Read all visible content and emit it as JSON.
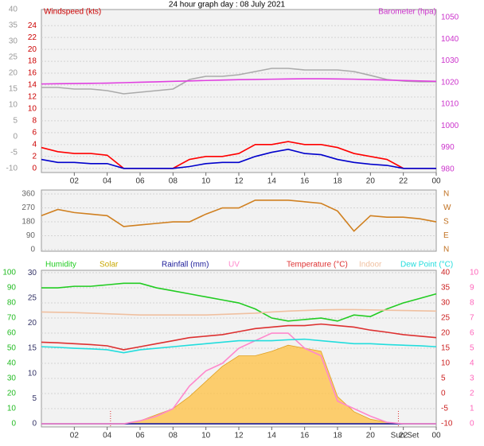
{
  "chart_data": [
    {
      "type": "line",
      "title": "24 hour graph day : 08 July 2021",
      "y_label": "Windspeed (kts)",
      "y2_label": "Barometer (hpa)",
      "grid": true,
      "x": [
        0,
        1,
        2,
        3,
        4,
        5,
        6,
        7,
        8,
        9,
        10,
        11,
        12,
        13,
        14,
        15,
        16,
        17,
        18,
        19,
        20,
        21,
        22,
        23,
        24
      ],
      "xlim": [
        0,
        24
      ],
      "xticks": [
        {
          "value": 2,
          "label": "02"
        },
        {
          "value": 4,
          "label": "04"
        },
        {
          "value": 6,
          "label": "06"
        },
        {
          "value": 8,
          "label": "08"
        },
        10,
        12,
        14,
        16,
        18,
        20,
        22,
        {
          "value": 24,
          "label": "00"
        }
      ],
      "ylim": [
        -0.7,
        26.7
      ],
      "yticks": [
        0,
        2,
        4,
        6,
        8,
        10,
        12,
        14,
        16,
        18,
        20,
        22,
        24
      ],
      "y2lim": [
        978.5,
        1053.6
      ],
      "y2ticks": [
        980,
        990,
        1000,
        1010,
        1020,
        1030,
        1040,
        1050
      ],
      "y3lim": [
        -11.25,
        40
      ],
      "y3ticks": [
        -10,
        -5,
        0,
        5,
        10,
        15,
        20,
        25,
        30,
        35,
        40
      ],
      "axis_colors": {
        "y": "#cc0000",
        "y2": "#cc33cc",
        "y3": "#999999"
      },
      "series": [
        {
          "color": "#aaaaaa",
          "axis": "y3",
          "values": [
            15.5,
            15.5,
            15,
            15,
            14.5,
            13.5,
            14,
            14.5,
            15,
            18,
            19,
            19,
            19.5,
            20.5,
            21.5,
            21.5,
            21,
            21,
            21,
            20.5,
            19.3,
            18,
            17.5,
            17.3,
            17.3
          ]
        },
        {
          "color": "#e040e0",
          "axis": "y2",
          "values": [
            1019.3,
            1019.4,
            1019.5,
            1019.6,
            1019.7,
            1019.9,
            1020.1,
            1020.3,
            1020.5,
            1020.7,
            1020.9,
            1021.1,
            1021.3,
            1021.4,
            1021.5,
            1021.6,
            1021.7,
            1021.7,
            1021.6,
            1021.5,
            1021.3,
            1021.1,
            1020.9,
            1020.7,
            1020.5
          ]
        },
        {
          "color": "#ff0000",
          "axis": "y",
          "values": [
            3.5,
            2.8,
            2.5,
            2.5,
            2.2,
            0,
            0,
            0,
            0,
            1.5,
            2,
            2,
            2.5,
            4,
            4,
            4.5,
            4,
            4,
            3.5,
            2.5,
            2,
            1.5,
            0,
            0,
            0
          ]
        },
        {
          "color": "#0000cc",
          "axis": "y",
          "values": [
            1.5,
            1,
            1,
            0.8,
            0.8,
            0,
            0,
            0,
            0,
            0.3,
            0.8,
            1,
            1,
            2,
            2.7,
            3.2,
            2.5,
            2.3,
            1.5,
            1,
            0.7,
            0.5,
            0,
            0,
            0
          ]
        }
      ]
    },
    {
      "type": "line",
      "grid": true,
      "x": [
        0,
        1,
        2,
        3,
        4,
        5,
        6,
        7,
        8,
        9,
        10,
        11,
        12,
        13,
        14,
        15,
        16,
        17,
        18,
        19,
        20,
        21,
        22,
        23,
        24
      ],
      "xlim": [
        0,
        24
      ],
      "ylim": [
        -10,
        386
      ],
      "yticks": [
        0,
        90,
        180,
        270,
        360
      ],
      "y2lim": [
        -10,
        386
      ],
      "y2ticks": [
        {
          "value": 0,
          "label": "N"
        },
        {
          "value": 90,
          "label": "E"
        },
        {
          "value": 180,
          "label": "S"
        },
        {
          "value": 270,
          "label": "W"
        },
        {
          "value": 360,
          "label": "N"
        }
      ],
      "axis_colors": {
        "y": "#666666",
        "y2": "#c07020"
      },
      "series": [
        {
          "color": "#d08020",
          "axis": "y",
          "values": [
            220,
            260,
            240,
            230,
            220,
            150,
            160,
            170,
            180,
            180,
            230,
            270,
            270,
            320,
            320,
            320,
            310,
            300,
            250,
            120,
            220,
            210,
            210,
            200,
            180
          ]
        }
      ]
    },
    {
      "type": "line",
      "grid": true,
      "x": [
        0,
        1,
        2,
        3,
        4,
        5,
        6,
        7,
        8,
        9,
        10,
        11,
        12,
        13,
        14,
        15,
        16,
        17,
        18,
        19,
        20,
        21,
        22,
        23,
        24
      ],
      "xlim": [
        0,
        24
      ],
      "xticks": [
        {
          "value": 2,
          "label": "02"
        },
        {
          "value": 4,
          "label": "04"
        },
        {
          "value": 6,
          "label": "06"
        },
        {
          "value": 8,
          "label": "08"
        },
        10,
        12,
        14,
        16,
        18,
        20,
        22,
        {
          "value": 24,
          "label": "00"
        }
      ],
      "ylim": [
        -2.1,
        101.6
      ],
      "yticks": [
        0,
        10,
        20,
        30,
        40,
        50,
        60,
        70,
        80,
        90,
        100
      ],
      "y2lim": [
        -11.05,
        40.8
      ],
      "y2ticks": [
        -10,
        -5,
        0,
        5,
        10,
        15,
        20,
        25,
        30,
        35,
        40
      ],
      "y3lim": [
        -0.21,
        10.16
      ],
      "y3ticks": [
        0,
        1,
        2,
        3,
        4,
        5,
        6,
        7,
        8,
        9,
        10
      ],
      "y4lim": [
        -0.63,
        30.5
      ],
      "y4ticks": [
        0,
        5,
        10,
        15,
        20,
        25,
        30
      ],
      "axis_colors": {
        "y": "#22bb22",
        "y2": "#cc2222",
        "y3": "#ff66bb",
        "y4": "#333366"
      },
      "sun_lines": [
        4.2,
        21.7
      ],
      "sunset_label": "Sun Set",
      "series": [
        {
          "name": "Humidity",
          "color": "#22cc22",
          "axis": "y",
          "values": [
            90,
            90,
            91,
            91,
            92,
            93,
            93,
            90,
            88,
            86,
            84,
            82,
            80,
            76,
            70,
            68,
            69,
            70,
            68,
            72,
            71,
            76,
            80,
            83,
            86
          ]
        },
        {
          "name": "Solar",
          "color": "#ffc040",
          "axis": "y",
          "fill": true,
          "values": [
            0,
            0,
            0,
            0,
            0,
            0,
            2,
            6,
            10,
            18,
            28,
            38,
            45,
            45,
            48,
            52,
            50,
            48,
            18,
            8,
            3,
            1,
            0,
            0,
            0
          ]
        },
        {
          "name": "Rainfall (mm)",
          "color": "#1a1a99",
          "axis": "y4",
          "values": [
            0,
            0,
            0,
            0,
            0,
            0,
            0,
            0,
            0,
            0,
            0,
            0,
            0,
            0,
            0,
            0,
            0,
            0,
            0,
            0,
            0,
            0,
            0,
            0,
            0
          ]
        },
        {
          "name": "UV",
          "color": "#ff88cc",
          "axis": "y3",
          "values": [
            0,
            0,
            0,
            0,
            0,
            0,
            0.2,
            0.5,
            1,
            2.5,
            3.5,
            4,
            5,
            5.5,
            6,
            6,
            5,
            4.5,
            1.5,
            1,
            0.5,
            0.1,
            0,
            0,
            0
          ]
        },
        {
          "name": "Temperature (°C)",
          "color": "#dd3030",
          "axis": "y2",
          "values": [
            17,
            16.8,
            16.5,
            16.2,
            15.8,
            14.5,
            15.5,
            16.5,
            17.5,
            18.5,
            19,
            19.5,
            20.5,
            21.5,
            22,
            22.5,
            22.5,
            23,
            22.5,
            22,
            21,
            20.3,
            19.5,
            19,
            18.5
          ]
        },
        {
          "name": "Indoor",
          "color": "#f0c0a0",
          "axis": "y2",
          "values": [
            27,
            26.9,
            26.8,
            26.6,
            26.4,
            26.2,
            26,
            26,
            26,
            26,
            26,
            26.2,
            26.4,
            26.6,
            27,
            27.3,
            27.5,
            27.7,
            27.8,
            27.8,
            27.7,
            27.6,
            27.5,
            27.4,
            27.3
          ]
        },
        {
          "name": "Dew Point (°C)",
          "color": "#22dddd",
          "axis": "y2",
          "values": [
            15.5,
            15.3,
            15,
            14.8,
            14.5,
            13.5,
            14.5,
            15,
            15.5,
            16,
            16.5,
            17,
            17.5,
            17.5,
            17.5,
            17.8,
            18,
            17.5,
            17,
            16.5,
            16.5,
            16.2,
            16,
            15.8,
            15.5
          ]
        }
      ]
    }
  ]
}
